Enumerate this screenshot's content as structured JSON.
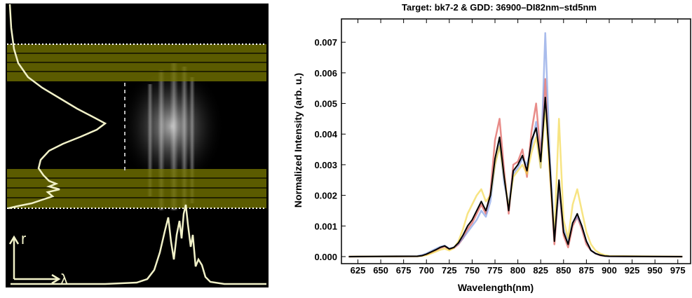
{
  "left_panel": {
    "r_label": "r",
    "lambda_label": "λ"
  },
  "chart_data": {
    "type": "line",
    "title": "Target: bk7-2  &  GDD: 36900–DI82nm–std5nm",
    "xlabel": "Wavelength(nm)",
    "ylabel": "Normalized Intensity (arb. u.)",
    "xlim": [
      607,
      989
    ],
    "ylim": [
      -0.00023,
      0.00776
    ],
    "xticks": [
      625,
      650,
      675,
      700,
      725,
      750,
      775,
      800,
      825,
      850,
      875,
      900,
      925,
      950,
      975
    ],
    "yticks": [
      {
        "value": 0,
        "label": "0.000"
      },
      0.001,
      0.002,
      0.003,
      0.004,
      0.005,
      0.006,
      0.007
    ],
    "x": [
      615,
      690,
      695,
      700,
      705,
      710,
      715,
      720,
      725,
      730,
      735,
      740,
      745,
      750,
      755,
      760,
      765,
      770,
      775,
      780,
      785,
      790,
      795,
      800,
      805,
      810,
      815,
      820,
      825,
      830,
      835,
      840,
      845,
      850,
      855,
      860,
      865,
      870,
      875,
      880,
      885,
      890,
      895,
      900,
      980
    ],
    "series": [
      {
        "color": "#d9403a",
        "values": [
          0,
          1e-05,
          3e-05,
          7e-05,
          0.00013,
          0.0002,
          0.00028,
          0.00033,
          0.00024,
          0.00028,
          0.0004,
          0.0006,
          0.0009,
          0.0011,
          0.0014,
          0.0017,
          0.0014,
          0.0021,
          0.0038,
          0.0045,
          0.0028,
          0.0014,
          0.003,
          0.0031,
          0.0035,
          0.0026,
          0.0041,
          0.005,
          0.0033,
          0.0058,
          0.0028,
          0.0004,
          0.0023,
          0.0007,
          0.0003,
          0.001,
          0.0013,
          0.0009,
          0.0004,
          0.0002,
          0.0001,
          4e-05,
          2e-05,
          1e-05,
          0
        ]
      },
      {
        "color": "#6f8fe0",
        "values": [
          0,
          2e-05,
          5e-05,
          0.0001,
          0.00018,
          0.00025,
          0.00032,
          0.00036,
          0.00026,
          0.0003,
          0.00042,
          0.0006,
          0.0008,
          0.001,
          0.0012,
          0.0015,
          0.0013,
          0.0018,
          0.003,
          0.0037,
          0.0024,
          0.0017,
          0.0027,
          0.0029,
          0.0032,
          0.003,
          0.0036,
          0.0044,
          0.0029,
          0.0073,
          0.0032,
          0.0006,
          0.0022,
          0.0009,
          0.0005,
          0.0011,
          0.0013,
          0.001,
          0.0005,
          0.0002,
          0.0001,
          5e-05,
          2e-05,
          1e-05,
          0
        ]
      },
      {
        "color": "#f2d230",
        "values": [
          0,
          1e-05,
          2e-05,
          5e-05,
          0.0001,
          0.00016,
          0.00022,
          0.00026,
          0.0002,
          0.00028,
          0.0005,
          0.0009,
          0.0014,
          0.0017,
          0.002,
          0.0022,
          0.0018,
          0.002,
          0.003,
          0.0036,
          0.0026,
          0.0016,
          0.0026,
          0.0028,
          0.003,
          0.0027,
          0.0034,
          0.0039,
          0.0029,
          0.0049,
          0.0027,
          0.0007,
          0.0045,
          0.0012,
          0.0006,
          0.0017,
          0.0022,
          0.0015,
          0.0008,
          0.0004,
          0.0002,
          0.0001,
          5e-05,
          2e-05,
          0
        ]
      },
      {
        "color": "#000000",
        "values": [
          0,
          1e-05,
          3e-05,
          8e-05,
          0.00015,
          0.00022,
          0.0003,
          0.00035,
          0.00025,
          0.0003,
          0.00045,
          0.0007,
          0.001,
          0.0012,
          0.0015,
          0.0018,
          0.0015,
          0.002,
          0.0032,
          0.0039,
          0.0026,
          0.0015,
          0.0028,
          0.003,
          0.0033,
          0.0028,
          0.0038,
          0.0042,
          0.0031,
          0.0052,
          0.003,
          0.0005,
          0.0025,
          0.0008,
          0.0004,
          0.0011,
          0.0014,
          0.001,
          0.0005,
          0.0002,
          0.0001,
          5e-05,
          2e-05,
          1e-05,
          0
        ]
      }
    ]
  }
}
